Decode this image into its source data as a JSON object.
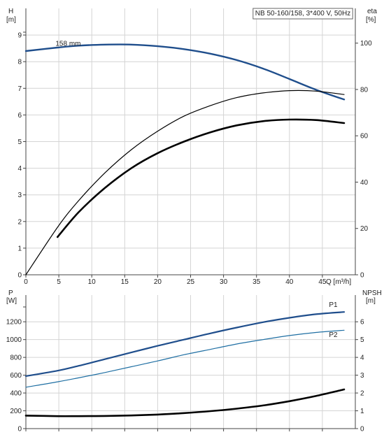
{
  "chart_data": [
    {
      "type": "line",
      "title": "NB 50-160/158, 3*400 V, 50Hz",
      "xlabel": "Q [m³/h]",
      "xlim": [
        0,
        50
      ],
      "x_ticks": [
        0,
        5,
        10,
        15,
        20,
        25,
        30,
        35,
        40,
        45
      ],
      "left_axis": {
        "label_top": "H",
        "label_unit": "[m]",
        "ylim": [
          0,
          10
        ],
        "ticks": [
          0,
          1,
          2,
          3,
          4,
          5,
          6,
          7,
          8,
          9
        ]
      },
      "right_axis": {
        "label_top": "eta",
        "label_unit": "[%]",
        "ylim": [
          0,
          115
        ],
        "ticks": [
          0,
          20,
          40,
          60,
          80,
          100
        ]
      },
      "grid": true,
      "series": [
        {
          "name": "158 mm",
          "axis": "left",
          "color": "#1f4e8c",
          "width": 2.4,
          "label_at": [
            4.5,
            8.6
          ],
          "x": [
            0,
            4.8,
            8,
            12,
            16,
            20,
            24,
            28,
            32,
            36,
            40,
            44,
            48.3
          ],
          "y": [
            8.4,
            8.53,
            8.6,
            8.64,
            8.64,
            8.58,
            8.47,
            8.3,
            8.06,
            7.74,
            7.35,
            6.95,
            6.58
          ]
        },
        {
          "axis": "right",
          "color": "#000000",
          "width": 1.2,
          "x": [
            0,
            4.8,
            8,
            12,
            16,
            20,
            24,
            28,
            32,
            36,
            40,
            44,
            48.3
          ],
          "y": [
            0,
            20.5,
            32,
            44,
            54,
            62,
            68.5,
            73,
            76.5,
            78.5,
            79.5,
            79.3,
            77.8
          ]
        },
        {
          "axis": "right",
          "color": "#000000",
          "width": 2.6,
          "x": [
            4.8,
            8,
            12,
            16,
            20,
            24,
            28,
            32,
            36,
            40,
            44,
            48.3
          ],
          "y": [
            16.3,
            27,
            37.5,
            46,
            52.5,
            57.5,
            61.5,
            64.5,
            66.3,
            67,
            66.8,
            65.5
          ]
        }
      ]
    },
    {
      "type": "line",
      "xlim": [
        0,
        50
      ],
      "left_axis": {
        "label_top": "P",
        "label_unit": "[W]",
        "ylim": [
          0,
          1500
        ],
        "ticks": [
          0,
          200,
          400,
          600,
          800,
          1000,
          1200
        ]
      },
      "right_axis": {
        "label_top": "NPSH",
        "label_unit": "[m]",
        "ylim": [
          0,
          7.5
        ],
        "ticks": [
          0,
          1,
          2,
          3,
          4,
          5,
          6
        ]
      },
      "grid": true,
      "series": [
        {
          "name": "P1",
          "axis": "left",
          "color": "#1f4e8c",
          "width": 2.2,
          "label_at": [
            46,
            1365
          ],
          "x": [
            0,
            4.8,
            8,
            12,
            16,
            20,
            24,
            28,
            32,
            36,
            40,
            44,
            48.3
          ],
          "y": [
            590,
            650,
            705,
            780,
            855,
            930,
            1000,
            1070,
            1135,
            1195,
            1245,
            1285,
            1310
          ]
        },
        {
          "name": "P2",
          "axis": "left",
          "color": "#1f6fa3",
          "width": 1.2,
          "label_at": [
            46,
            1030
          ],
          "x": [
            0,
            4.8,
            8,
            12,
            16,
            20,
            24,
            28,
            32,
            36,
            40,
            44,
            48.3
          ],
          "y": [
            465,
            525,
            570,
            630,
            695,
            760,
            830,
            890,
            950,
            1000,
            1045,
            1080,
            1105
          ]
        },
        {
          "axis": "right",
          "color": "#000000",
          "width": 2.6,
          "x": [
            0,
            4.8,
            8,
            12,
            16,
            20,
            24,
            28,
            32,
            36,
            40,
            44,
            48.3
          ],
          "y": [
            0.73,
            0.7,
            0.7,
            0.71,
            0.74,
            0.79,
            0.87,
            0.98,
            1.12,
            1.3,
            1.54,
            1.83,
            2.2
          ]
        }
      ]
    }
  ]
}
